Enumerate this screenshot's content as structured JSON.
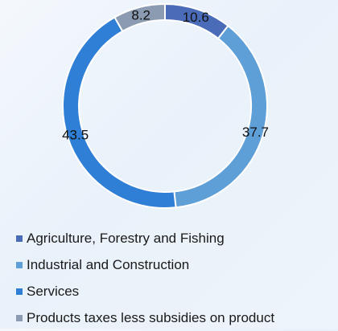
{
  "chart_data": {
    "type": "pie",
    "variant": "donut",
    "title": "",
    "categories": [
      "Agriculture, Forestry and Fishing",
      "Industrial and Construction",
      "Services",
      "Products taxes less subsidies on product"
    ],
    "values": [
      10.6,
      37.7,
      43.5,
      8.2
    ],
    "colors": [
      "#4a6cb8",
      "#5e9fd8",
      "#2f7fd6",
      "#8a9bb2"
    ],
    "legend_position": "bottom",
    "data_labels": true
  }
}
